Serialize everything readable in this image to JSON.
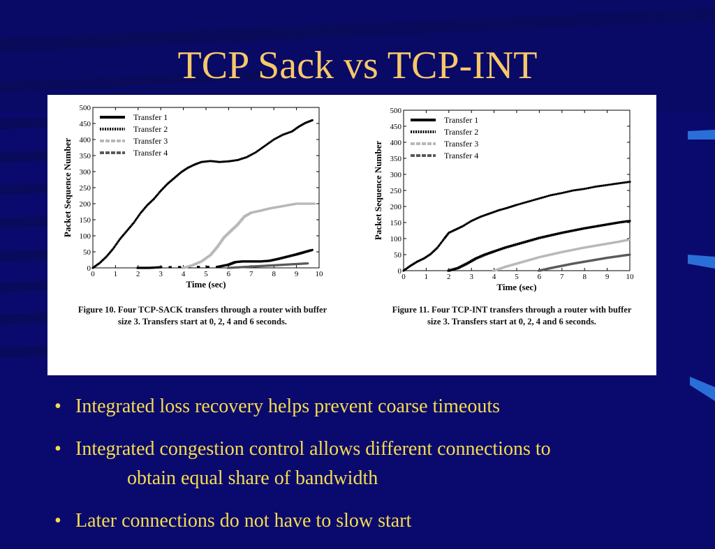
{
  "slide": {
    "title": "TCP Sack vs TCP-INT",
    "bullets": [
      {
        "line1": "Integrated loss recovery helps prevent coarse timeouts",
        "line2": ""
      },
      {
        "line1": "Integrated congestion control allows different connections to",
        "line2": "obtain equal share of bandwidth"
      },
      {
        "line1": "Later connections do not have to slow start",
        "line2": ""
      }
    ],
    "bullet_symbol": "•",
    "colors": {
      "background": "#0a0a6e",
      "title": "#f6c86a",
      "bullets": "#f6dc4e"
    }
  },
  "chart_data": [
    {
      "type": "scatter",
      "caption_line1": "Figure 10. Four TCP-SACK transfers through a router with buffer",
      "caption_line2": "size 3. Transfers start at 0, 2, 4 and 6 seconds.",
      "xlabel": "Time (sec)",
      "ylabel": "Packet Sequence Number",
      "xlim": [
        0,
        10
      ],
      "ylim": [
        0,
        500
      ],
      "xticks": [
        0,
        1,
        2,
        3,
        4,
        5,
        6,
        7,
        8,
        9,
        10
      ],
      "yticks": [
        0,
        50,
        100,
        150,
        200,
        250,
        300,
        350,
        400,
        450,
        500
      ],
      "legend_position": "top-left",
      "series": [
        {
          "name": "Transfer 1",
          "color": "#000000",
          "style": "solid",
          "points": [
            [
              0,
              0
            ],
            [
              0.3,
              15
            ],
            [
              0.6,
              35
            ],
            [
              0.9,
              60
            ],
            [
              1.2,
              90
            ],
            [
              1.5,
              115
            ],
            [
              1.8,
              140
            ],
            [
              2.1,
              170
            ],
            [
              2.4,
              195
            ],
            [
              2.7,
              215
            ],
            [
              3.0,
              240
            ],
            [
              3.3,
              262
            ],
            [
              3.6,
              280
            ],
            [
              3.9,
              298
            ],
            [
              4.2,
              312
            ],
            [
              4.5,
              322
            ],
            [
              4.8,
              330
            ],
            [
              5.2,
              333
            ],
            [
              5.6,
              330
            ],
            [
              6.0,
              332
            ],
            [
              6.4,
              336
            ],
            [
              6.8,
              345
            ],
            [
              7.2,
              360
            ],
            [
              7.6,
              380
            ],
            [
              8.0,
              400
            ],
            [
              8.4,
              415
            ],
            [
              8.8,
              425
            ],
            [
              9.1,
              440
            ],
            [
              9.4,
              452
            ],
            [
              9.7,
              460
            ]
          ]
        },
        {
          "name": "Transfer 2",
          "color": "#000000",
          "style": "dotted",
          "points": [
            [
              2.0,
              0
            ],
            [
              2.5,
              0
            ],
            [
              3.0,
              2
            ],
            [
              5.5,
              3
            ],
            [
              6.0,
              10
            ],
            [
              6.3,
              18
            ],
            [
              6.6,
              20
            ],
            [
              7.0,
              20
            ],
            [
              7.4,
              20
            ],
            [
              7.8,
              22
            ],
            [
              8.2,
              28
            ],
            [
              8.6,
              35
            ],
            [
              9.0,
              42
            ],
            [
              9.3,
              48
            ],
            [
              9.7,
              56
            ]
          ]
        },
        {
          "name": "Transfer 3",
          "color": "#b8b8b8",
          "style": "dashed",
          "points": [
            [
              4.0,
              0
            ],
            [
              4.4,
              8
            ],
            [
              4.8,
              20
            ],
            [
              5.2,
              40
            ],
            [
              5.5,
              65
            ],
            [
              5.8,
              95
            ],
            [
              6.1,
              115
            ],
            [
              6.4,
              135
            ],
            [
              6.7,
              160
            ],
            [
              7.0,
              172
            ],
            [
              7.4,
              178
            ],
            [
              7.8,
              185
            ],
            [
              8.2,
              190
            ],
            [
              8.6,
              195
            ],
            [
              9.0,
              200
            ],
            [
              9.4,
              200
            ],
            [
              9.8,
              200
            ]
          ]
        },
        {
          "name": "Transfer 4",
          "color": "#5a5a5a",
          "style": "dashed",
          "points": [
            [
              6.0,
              0
            ],
            [
              6.5,
              2
            ],
            [
              7.0,
              4
            ],
            [
              7.5,
              6
            ],
            [
              8.0,
              8
            ],
            [
              8.5,
              10
            ],
            [
              9.0,
              12
            ],
            [
              9.5,
              14
            ]
          ]
        }
      ]
    },
    {
      "type": "scatter",
      "caption_line1": "Figure 11. Four TCP-INT transfers through a router with buffer",
      "caption_line2": "size 3. Transfers start at 0, 2, 4 and 6 seconds.",
      "xlabel": "Time (sec)",
      "ylabel": "Packet Sequence Number",
      "xlim": [
        0,
        10
      ],
      "ylim": [
        0,
        500
      ],
      "xticks": [
        0,
        1,
        2,
        3,
        4,
        5,
        6,
        7,
        8,
        9,
        10
      ],
      "yticks": [
        0,
        50,
        100,
        150,
        200,
        250,
        300,
        350,
        400,
        450,
        500
      ],
      "legend_position": "top-left",
      "series": [
        {
          "name": "Transfer 1",
          "color": "#000000",
          "style": "solid",
          "points": [
            [
              0,
              0
            ],
            [
              0.3,
              15
            ],
            [
              0.6,
              28
            ],
            [
              0.9,
              38
            ],
            [
              1.2,
              52
            ],
            [
              1.5,
              72
            ],
            [
              1.8,
              100
            ],
            [
              2.0,
              118
            ],
            [
              2.3,
              128
            ],
            [
              2.6,
              138
            ],
            [
              3.0,
              155
            ],
            [
              3.4,
              168
            ],
            [
              3.8,
              178
            ],
            [
              4.2,
              188
            ],
            [
              4.6,
              196
            ],
            [
              5.0,
              205
            ],
            [
              5.5,
              215
            ],
            [
              6.0,
              225
            ],
            [
              6.5,
              235
            ],
            [
              7.0,
              242
            ],
            [
              7.5,
              250
            ],
            [
              8.0,
              255
            ],
            [
              8.5,
              262
            ],
            [
              9.0,
              267
            ],
            [
              9.5,
              272
            ],
            [
              10.0,
              277
            ]
          ]
        },
        {
          "name": "Transfer 2",
          "color": "#000000",
          "style": "dotted",
          "points": [
            [
              2.0,
              0
            ],
            [
              2.4,
              8
            ],
            [
              2.8,
              22
            ],
            [
              3.2,
              38
            ],
            [
              3.6,
              50
            ],
            [
              4.0,
              60
            ],
            [
              4.5,
              72
            ],
            [
              5.0,
              82
            ],
            [
              5.5,
              92
            ],
            [
              6.0,
              102
            ],
            [
              6.5,
              110
            ],
            [
              7.0,
              118
            ],
            [
              7.5,
              125
            ],
            [
              8.0,
              132
            ],
            [
              8.5,
              138
            ],
            [
              9.0,
              144
            ],
            [
              9.5,
              150
            ],
            [
              10.0,
              155
            ]
          ]
        },
        {
          "name": "Transfer 3",
          "color": "#b8b8b8",
          "style": "dashed",
          "points": [
            [
              4.0,
              0
            ],
            [
              4.5,
              12
            ],
            [
              5.0,
              22
            ],
            [
              5.5,
              32
            ],
            [
              6.0,
              42
            ],
            [
              6.5,
              50
            ],
            [
              7.0,
              58
            ],
            [
              7.5,
              65
            ],
            [
              8.0,
              72
            ],
            [
              8.5,
              78
            ],
            [
              9.0,
              84
            ],
            [
              9.5,
              90
            ],
            [
              10.0,
              97
            ]
          ]
        },
        {
          "name": "Transfer 4",
          "color": "#5a5a5a",
          "style": "dashed",
          "points": [
            [
              6.0,
              0
            ],
            [
              6.5,
              8
            ],
            [
              7.0,
              15
            ],
            [
              7.5,
              22
            ],
            [
              8.0,
              28
            ],
            [
              8.5,
              34
            ],
            [
              9.0,
              40
            ],
            [
              9.5,
              45
            ],
            [
              10.0,
              50
            ]
          ]
        }
      ]
    }
  ]
}
